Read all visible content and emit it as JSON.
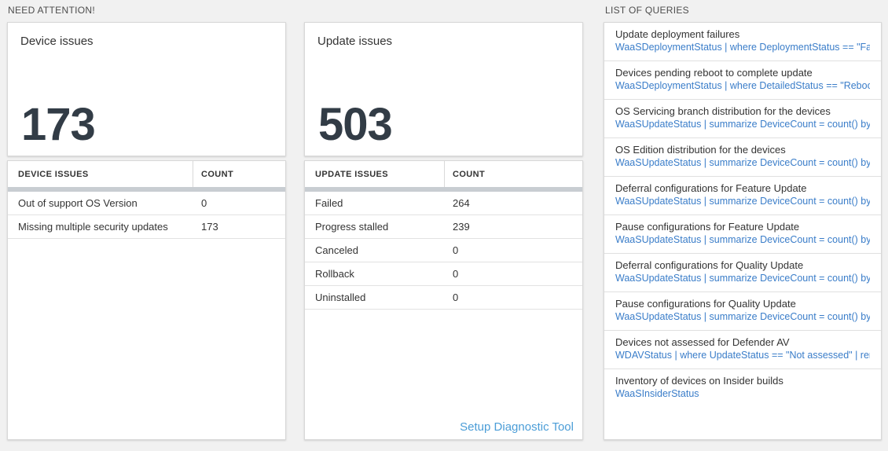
{
  "section_headers": {
    "need_attention": "NEED ATTENTION!",
    "list_of_queries": "LIST OF QUERIES"
  },
  "device_issues": {
    "tile_title": "Device issues",
    "tile_count": "173",
    "table": {
      "col_issue": "DEVICE ISSUES",
      "col_count": "COUNT",
      "rows": [
        {
          "label": "Out of support OS Version",
          "count": "0"
        },
        {
          "label": "Missing multiple security updates",
          "count": "173"
        }
      ]
    }
  },
  "update_issues": {
    "tile_title": "Update issues",
    "tile_count": "503",
    "table": {
      "col_issue": "UPDATE ISSUES",
      "col_count": "COUNT",
      "rows": [
        {
          "label": "Failed",
          "count": "264"
        },
        {
          "label": "Progress stalled",
          "count": "239"
        },
        {
          "label": "Canceled",
          "count": "0"
        },
        {
          "label": "Rollback",
          "count": "0"
        },
        {
          "label": "Uninstalled",
          "count": "0"
        }
      ]
    },
    "footer_link": "Setup Diagnostic Tool"
  },
  "queries": {
    "items": [
      {
        "title": "Update deployment failures",
        "query": "WaaSDeploymentStatus | where DeploymentStatus == \"Failed\" |..."
      },
      {
        "title": "Devices pending reboot to complete update",
        "query": "WaaSDeploymentStatus | where DetailedStatus == \"Reboot pend..."
      },
      {
        "title": "OS Servicing branch distribution for the devices",
        "query": "WaaSUpdateStatus | summarize DeviceCount = count() by OSSer..."
      },
      {
        "title": "OS Edition distribution for the devices",
        "query": "WaaSUpdateStatus | summarize DeviceCount = count() by OSEdit..."
      },
      {
        "title": "Deferral configurations for Feature Update",
        "query": "WaaSUpdateStatus | summarize DeviceCount = count() by Featur..."
      },
      {
        "title": "Pause configurations for Feature Update",
        "query": "WaaSUpdateStatus | summarize DeviceCount = count() by Featur..."
      },
      {
        "title": "Deferral configurations for Quality Update",
        "query": "WaaSUpdateStatus | summarize DeviceCount = count() by Qualit..."
      },
      {
        "title": "Pause configurations for Quality Update",
        "query": "WaaSUpdateStatus | summarize DeviceCount = count() by Qualit..."
      },
      {
        "title": "Devices not assessed for Defender AV",
        "query": "WDAVStatus | where UpdateStatus == \"Not assessed\" | render ta..."
      },
      {
        "title": "Inventory of devices on Insider builds",
        "query": "WaaSInsiderStatus"
      }
    ]
  },
  "colors": {
    "page_background": "#f1f1f1",
    "card_border": "#d8d8d8",
    "big_number": "#323c46",
    "query_link_blue": "#3a7dc9",
    "setup_link_blue": "#4b9dd7",
    "table_header_bar": "#c8cdd2"
  }
}
